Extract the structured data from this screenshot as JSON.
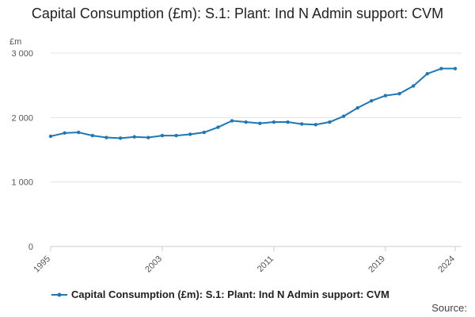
{
  "chart_data": {
    "type": "line",
    "title": "Capital Consumption (£m): S.1: Plant: Ind N Admin support: CVM",
    "ylabel": "£m",
    "xlabel": "",
    "ylim": [
      0,
      3000
    ],
    "yticks": [
      {
        "value": 0,
        "label": "0"
      },
      {
        "value": 1000,
        "label": "1 000"
      },
      {
        "value": 2000,
        "label": "2 000"
      },
      {
        "value": 3000,
        "label": "3 000"
      }
    ],
    "xticks": [
      "1995",
      "2003",
      "2011",
      "2019",
      "2024"
    ],
    "x": [
      1995,
      1996,
      1997,
      1998,
      1999,
      2000,
      2001,
      2002,
      2003,
      2004,
      2005,
      2006,
      2007,
      2008,
      2009,
      2010,
      2011,
      2012,
      2013,
      2014,
      2015,
      2016,
      2017,
      2018,
      2019,
      2020,
      2021,
      2022,
      2023,
      2024
    ],
    "series": [
      {
        "name": "Capital Consumption (£m): S.1: Plant: Ind N Admin support: CVM",
        "color": "#1f77b4",
        "values": [
          1710,
          1760,
          1770,
          1720,
          1690,
          1680,
          1700,
          1690,
          1720,
          1720,
          1740,
          1770,
          1850,
          1950,
          1930,
          1910,
          1930,
          1930,
          1900,
          1890,
          1930,
          2020,
          2150,
          2260,
          2340,
          2370,
          2490,
          2680,
          2760,
          2760
        ]
      }
    ],
    "legend_position": "bottom"
  },
  "source_label": "Source:"
}
